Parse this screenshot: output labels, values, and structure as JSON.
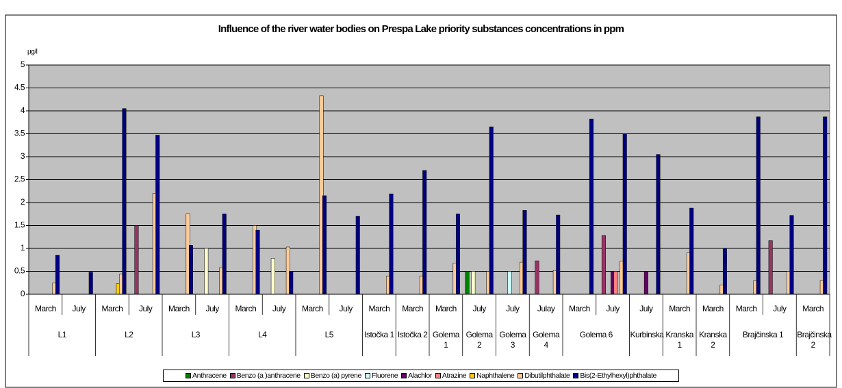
{
  "chart_data": {
    "type": "bar",
    "title": "Influence of the river water bodies on Prespa Lake priority substances concentrations in ppm",
    "y_label": "µg/l",
    "groups": [
      {
        "label": "L1",
        "categories": [
          "March",
          "July"
        ]
      },
      {
        "label": "L2",
        "categories": [
          "March",
          "July"
        ]
      },
      {
        "label": "L3",
        "categories": [
          "March",
          "July"
        ]
      },
      {
        "label": "L4",
        "categories": [
          "March",
          "July"
        ]
      },
      {
        "label": "L5",
        "categories": [
          "March",
          "July"
        ]
      },
      {
        "label": "Istočka 1",
        "categories": [
          "March"
        ]
      },
      {
        "label": "Istočka 2",
        "categories": [
          "March"
        ]
      },
      {
        "label": "Golema 1",
        "categories": [
          "March"
        ]
      },
      {
        "label": "Golema 2",
        "categories": [
          "July"
        ]
      },
      {
        "label": "Golema 3",
        "categories": [
          "July"
        ]
      },
      {
        "label": "Golema 4",
        "categories": [
          "Julay"
        ]
      },
      {
        "label": "Golema 6",
        "categories": [
          "March",
          "July"
        ]
      },
      {
        "label": "Kurbinska",
        "categories": [
          "July"
        ]
      },
      {
        "label": "Kranska 1",
        "categories": [
          "March"
        ]
      },
      {
        "label": "Kranska 2",
        "categories": [
          "March"
        ]
      },
      {
        "label": "Brajčinska 1",
        "categories": [
          "March",
          "July"
        ]
      },
      {
        "label": "Brajčinska 2",
        "categories": [
          "March"
        ]
      }
    ],
    "series": [
      {
        "name": "Anthracene",
        "color": "#008000",
        "values": [
          null,
          null,
          null,
          null,
          null,
          null,
          null,
          null,
          null,
          null,
          null,
          null,
          null,
          0.5,
          null,
          null,
          null,
          null,
          null,
          null,
          null,
          null,
          null,
          null
        ]
      },
      {
        "name": "Benzo (a )anthracene",
        "color": "#993366",
        "values": [
          null,
          null,
          null,
          1.5,
          null,
          null,
          null,
          null,
          null,
          null,
          null,
          null,
          null,
          null,
          null,
          0.73,
          null,
          1.28,
          null,
          null,
          null,
          null,
          1.17,
          null
        ]
      },
      {
        "name": "Benzo (a) pyrene",
        "color": "#ffffcc",
        "values": [
          null,
          null,
          null,
          null,
          null,
          1.0,
          null,
          0.78,
          null,
          null,
          null,
          null,
          null,
          0.5,
          null,
          null,
          null,
          null,
          null,
          null,
          null,
          null,
          null,
          null
        ]
      },
      {
        "name": "Fluorene",
        "color": "#ccffff",
        "values": [
          null,
          null,
          null,
          null,
          null,
          null,
          null,
          null,
          null,
          null,
          null,
          null,
          null,
          null,
          0.5,
          null,
          null,
          null,
          null,
          null,
          null,
          null,
          null,
          null
        ]
      },
      {
        "name": "Alachlor",
        "color": "#660066",
        "values": [
          null,
          null,
          null,
          null,
          null,
          null,
          null,
          null,
          null,
          null,
          null,
          null,
          null,
          null,
          null,
          null,
          null,
          0.5,
          0.5,
          null,
          null,
          null,
          null,
          null
        ]
      },
      {
        "name": "Atrazine",
        "color": "#ff8080",
        "values": [
          null,
          null,
          null,
          null,
          null,
          null,
          null,
          null,
          null,
          null,
          null,
          null,
          null,
          null,
          null,
          null,
          null,
          0.5,
          null,
          null,
          null,
          null,
          null,
          null
        ]
      },
      {
        "name": "Naphthalene",
        "color": "#ffcc00",
        "values": [
          null,
          null,
          0.23,
          null,
          null,
          null,
          null,
          null,
          null,
          null,
          null,
          null,
          null,
          null,
          null,
          null,
          null,
          null,
          null,
          null,
          null,
          null,
          null,
          null
        ]
      },
      {
        "name": "Dibutilphthalate",
        "color": "#ffcc99",
        "values": [
          0.25,
          null,
          0.44,
          2.2,
          1.75,
          0.58,
          1.5,
          1.03,
          4.33,
          null,
          0.4,
          0.4,
          0.68,
          0.5,
          0.7,
          0.52,
          null,
          0.72,
          null,
          0.9,
          0.2,
          0.3,
          0.5,
          0.3
        ]
      },
      {
        "name": "Bis(2-Ethylhexyl)phthalate",
        "color": "#000080",
        "values": [
          0.85,
          0.48,
          4.05,
          3.47,
          1.07,
          1.75,
          1.4,
          0.5,
          2.15,
          1.7,
          2.19,
          2.7,
          1.75,
          3.65,
          1.83,
          1.73,
          3.82,
          3.5,
          3.05,
          1.88,
          1.0,
          3.87,
          1.72,
          3.87
        ]
      }
    ],
    "ylim": [
      0,
      5
    ],
    "yticks": [
      0,
      0.5,
      1,
      1.5,
      2,
      2.5,
      3,
      3.5,
      4,
      4.5,
      5
    ],
    "grid": true,
    "plot_background": "#c0c0c0"
  }
}
